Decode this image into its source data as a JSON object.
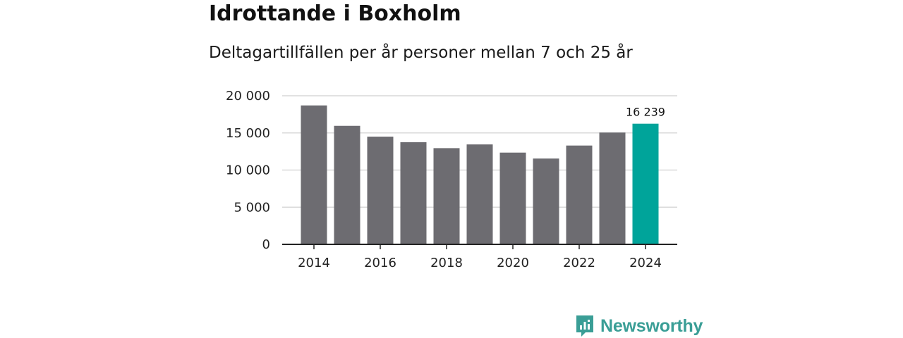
{
  "title": "Idrottande i Boxholm",
  "subtitle": "Deltagartillfällen per år personer mellan 7 och 25 år",
  "brand": {
    "name": "Newsworthy",
    "icon": "newsworthy-logo-icon",
    "color": "#3a9e96"
  },
  "colors": {
    "bar": "#6d6c71",
    "highlight": "#00a49a",
    "grid": "#d9d9d9",
    "axis": "#222222"
  },
  "chart_data": {
    "type": "bar",
    "title": "Idrottande i Boxholm",
    "subtitle": "Deltagartillfällen per år personer mellan 7 och 25 år",
    "categories": [
      "2014",
      "2015",
      "2016",
      "2017",
      "2018",
      "2019",
      "2020",
      "2021",
      "2022",
      "2023",
      "2024"
    ],
    "values": [
      18700,
      15950,
      14500,
      13750,
      12950,
      13450,
      12350,
      11550,
      13300,
      15050,
      16239
    ],
    "highlight_index": 10,
    "data_labels": [
      {
        "index": 10,
        "text": "16 239"
      }
    ],
    "x_tick_labels": [
      "2014",
      "2016",
      "2018",
      "2020",
      "2022",
      "2024"
    ],
    "y_ticks": [
      0,
      5000,
      10000,
      15000,
      20000
    ],
    "y_tick_labels": [
      "0",
      "5 000",
      "10 000",
      "15 000",
      "20 000"
    ],
    "ylim": [
      0,
      20000
    ],
    "grid": true,
    "xlabel": "",
    "ylabel": ""
  }
}
